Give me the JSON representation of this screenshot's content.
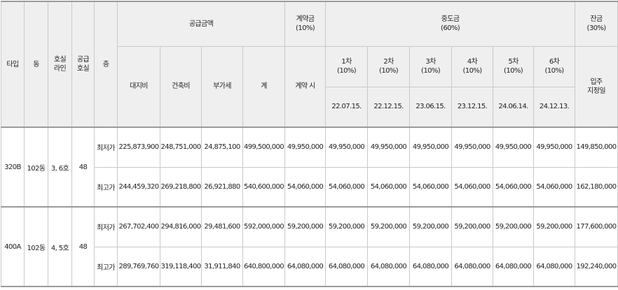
{
  "headers": {
    "type": "타입",
    "dong": "동",
    "line": "호실\n라인",
    "units": "공급\n호실",
    "floor": "층",
    "supply_price": "공급금액",
    "land": "대지비",
    "building": "건축비",
    "vat": "부가세",
    "total": "계",
    "contract": "계약금\n(10%)",
    "contract_when": "계약 시",
    "middle": "중도금\n(60%)",
    "balance": "잔금\n(30%)",
    "balance_when": "입주\n지정일",
    "installments": [
      {
        "label": "1차\n(10%)",
        "date": "22.07.15."
      },
      {
        "label": "2차\n(10%)",
        "date": "22.12.15."
      },
      {
        "label": "3차\n(10%)",
        "date": "23.06.15."
      },
      {
        "label": "4차\n(10%)",
        "date": "23.12.15."
      },
      {
        "label": "5차\n(10%)",
        "date": "24.06.14."
      },
      {
        "label": "6차\n(10%)",
        "date": "24.12.13."
      }
    ]
  },
  "groups": [
    {
      "type": "320B",
      "dong": "102동",
      "line": "3, 6호",
      "units": "48",
      "rows": [
        {
          "floor": "최저가",
          "land": "225,873,900",
          "building": "248,751,000",
          "vat": "24,875,100",
          "total": "499,500,000",
          "contract": "49,950,000",
          "mid": [
            "49,950,000",
            "49,950,000",
            "49,950,000",
            "49,950,000",
            "49,950,000",
            "49,950,000"
          ],
          "balance": "149,850,000"
        },
        {
          "floor": "최고가",
          "land": "244,459,320",
          "building": "269,218,800",
          "vat": "26,921,880",
          "total": "540,600,000",
          "contract": "54,060,000",
          "mid": [
            "54,060,000",
            "54,060,000",
            "54,060,000",
            "54,060,000",
            "54,060,000",
            "54,060,000"
          ],
          "balance": "162,180,000"
        }
      ]
    },
    {
      "type": "400A",
      "dong": "102동",
      "line": "4, 5호",
      "units": "48",
      "rows": [
        {
          "floor": "최저가",
          "land": "267,702,400",
          "building": "294,816,000",
          "vat": "29,481,600",
          "total": "592,000,000",
          "contract": "59,200,000",
          "mid": [
            "59,200,000",
            "59,200,000",
            "59,200,000",
            "59,200,000",
            "59,200,000",
            "59,200,000"
          ],
          "balance": "177,600,000"
        },
        {
          "floor": "최고가",
          "land": "289,769,760",
          "building": "319,118,400",
          "vat": "31,911,840",
          "total": "640,800,000",
          "contract": "64,080,000",
          "mid": [
            "64,080,000",
            "64,080,000",
            "64,080,000",
            "64,080,000",
            "64,080,000",
            "64,080,000"
          ],
          "balance": "192,240,000"
        }
      ]
    }
  ]
}
